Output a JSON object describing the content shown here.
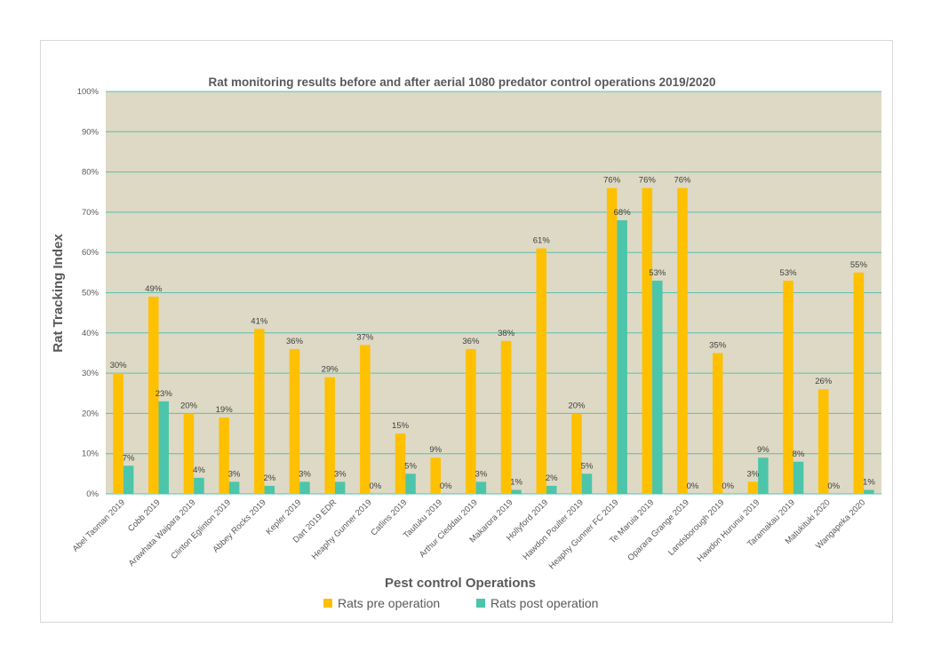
{
  "chart_data": {
    "type": "bar",
    "title": "Rat monitoring results before and after aerial 1080 predator control operations 2019/2020",
    "xlabel": "Pest control Operations",
    "ylabel": "Rat Tracking  Index",
    "ylim": [
      0,
      100
    ],
    "y_ticks": [
      "0%",
      "10%",
      "20%",
      "30%",
      "40%",
      "50%",
      "60%",
      "70%",
      "80%",
      "90%",
      "100%"
    ],
    "grid": true,
    "legend_position": "bottom",
    "categories": [
      "Abel Tasman 2019",
      "Cobb 2019",
      "Arawhata Waipara 2019",
      "Clinton Eglinton 2019",
      "Abbey Rocks 2019",
      "Kepler 2019",
      "Dart 2019 EDR",
      "Heaphy Gunner 2019",
      "Catlins 2019",
      "Tautuku 2019",
      "Arthur Cleddau 2019",
      "Makarora 2019",
      "Hollyford 2019",
      "Hawdon Poulter 2019",
      "Heaphy Gunner FC 2019",
      "Te Maruia 2019",
      "Oparara Grange 2019",
      "Landsborough 2019",
      "Hawdon Hurunui 2019",
      "Taramakau 2019",
      "Matukituki 2020",
      "Wangapeka 2020"
    ],
    "series": [
      {
        "name": "Rats pre operation",
        "color": "#FFC000",
        "values": [
          30,
          49,
          20,
          19,
          41,
          36,
          29,
          37,
          15,
          9,
          36,
          38,
          61,
          20,
          76,
          76,
          76,
          35,
          3,
          53,
          26,
          55
        ],
        "labels": [
          "30%",
          "49%",
          "20%",
          "19%",
          "41%",
          "36%",
          "29%",
          "37%",
          "15%",
          "9%",
          "36%",
          "38%",
          "61%",
          "20%",
          "76%",
          "76%",
          "76%",
          "35%",
          "3%",
          "53%",
          "26%",
          "55%"
        ]
      },
      {
        "name": "Rats post operation",
        "color": "#4CC5AA",
        "values": [
          7,
          23,
          4,
          3,
          2,
          3,
          3,
          0,
          5,
          0,
          3,
          1,
          2,
          5,
          68,
          53,
          0,
          0,
          9,
          8,
          0,
          1
        ],
        "labels": [
          "7%",
          "23%",
          "4%",
          "3%",
          "2%",
          "3%",
          "3%",
          "0%",
          "5%",
          "0%",
          "3%",
          "1%",
          "2%",
          "5%",
          "68%",
          "53%",
          "0%",
          "0%",
          "9%",
          "8%",
          "0%",
          "1%"
        ]
      }
    ],
    "colors": {
      "plot_bg": "#DDD9C4",
      "grid": "#5BC0B0",
      "text": "#595959"
    }
  }
}
